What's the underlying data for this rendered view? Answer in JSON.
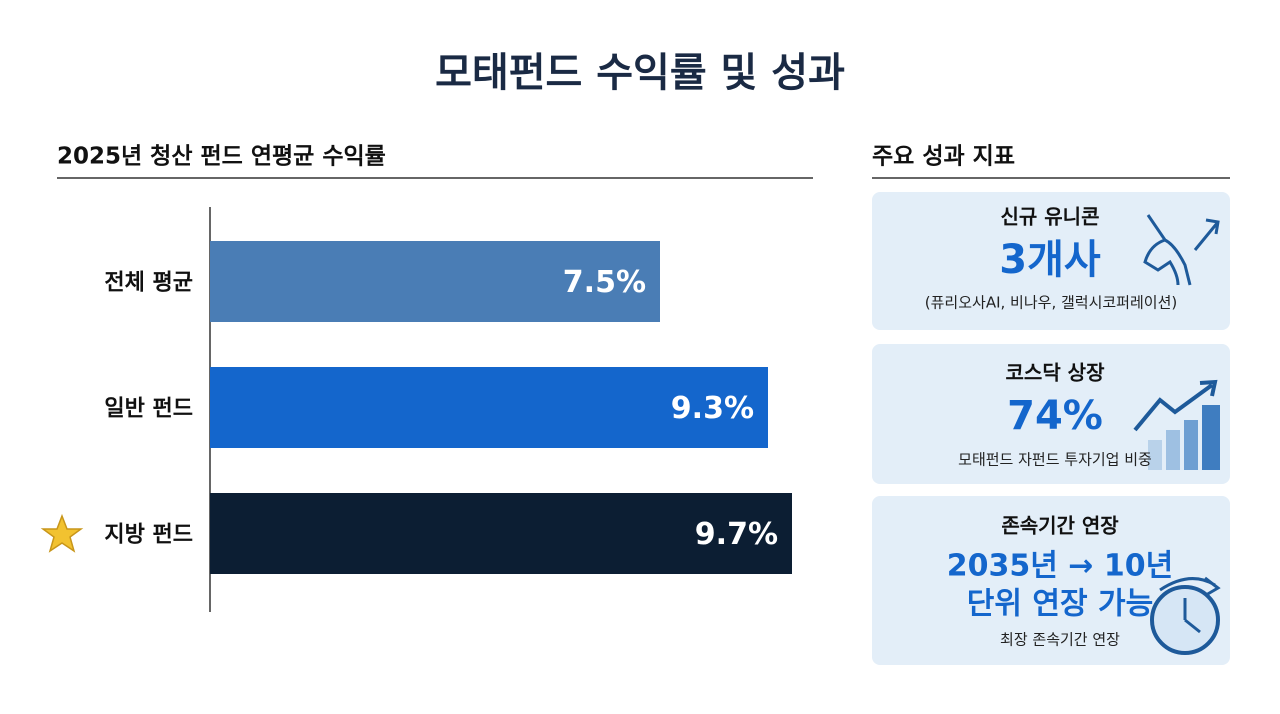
{
  "title": "모태펀드 수익률 및 성과",
  "chart_data": {
    "type": "bar",
    "orientation": "horizontal",
    "title": "2025년 청산 펀드 연평균 수익률",
    "categories": [
      "전체 평균",
      "일반 펀드",
      "지방 펀드"
    ],
    "values": [
      7.5,
      9.3,
      9.7
    ],
    "value_labels": [
      "7.5%",
      "9.3%",
      "9.7%"
    ],
    "colors": [
      "#4a7db5",
      "#1466cc",
      "#0c1e33"
    ]
  },
  "panel": {
    "title": "주요 성과 지표",
    "cards": [
      {
        "title": "신규 유니콘",
        "value_lines": [
          "3개사"
        ],
        "note": "(퓨리오사AI, 비나우, 갤럭시코퍼레이션)"
      },
      {
        "title": "코스닥 상장",
        "value_lines": [
          "74%"
        ],
        "note": "모태펀드 자펀드 투자기업 비중"
      },
      {
        "title": "존속기간 연장",
        "value_lines": [
          "2035년 → 10년",
          "단위 연장 가능"
        ],
        "note": "최장 존속기간 연장"
      }
    ]
  }
}
